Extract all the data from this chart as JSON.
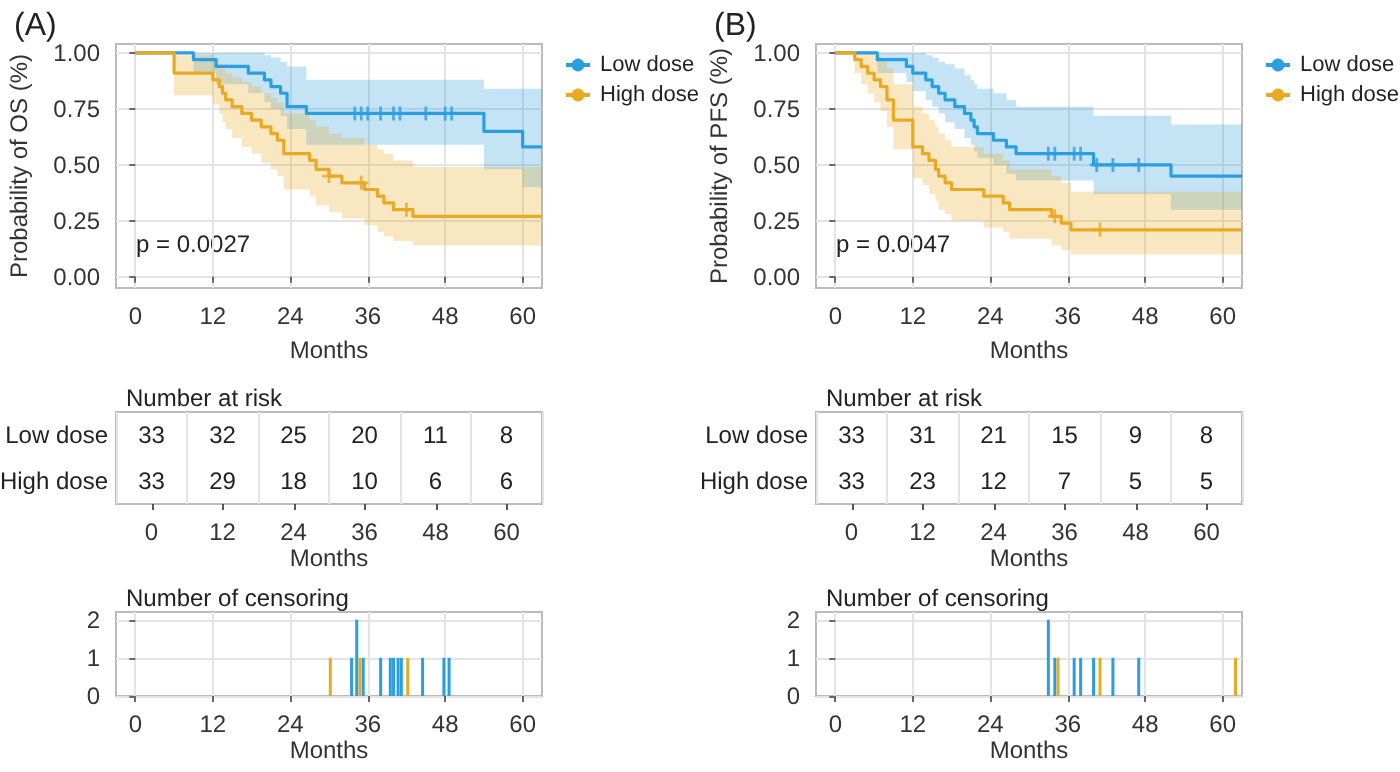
{
  "chart_data": [
    {
      "type": "step",
      "title": "(A)",
      "xlabel": "Months",
      "ylabel": "Probability of OS (%)",
      "annotations": [
        "p = 0.0027"
      ],
      "xlim": [
        -3,
        63
      ],
      "xticks": [
        0,
        12,
        24,
        36,
        48,
        60
      ],
      "ylim": [
        -0.05,
        1.04
      ],
      "yticks": [
        {
          "value": 0,
          "label": "0.00"
        },
        {
          "value": 0.25,
          "label": "0.25"
        },
        {
          "value": 0.5,
          "label": "0.50"
        },
        {
          "value": 0.75,
          "label": "0.75"
        },
        {
          "value": 1,
          "label": "1.00"
        }
      ],
      "grid": true,
      "legend": "top right",
      "line_style": "solid",
      "series": [
        {
          "name": "Low dose",
          "color": "#2a9ee0",
          "x": [
            0,
            9,
            12.5,
            17.5,
            20,
            21,
            22.5,
            23.5,
            26.5,
            54,
            60,
            63
          ],
          "values": [
            1,
            0.97,
            0.94,
            0.91,
            0.88,
            0.85,
            0.82,
            0.76,
            0.73,
            0.65,
            0.58,
            0.58
          ],
          "upper": [
            1,
            1,
            1,
            1,
            0.99,
            0.98,
            0.96,
            0.94,
            0.88,
            0.84,
            0.84,
            0.84
          ],
          "lower": [
            1,
            0.91,
            0.86,
            0.82,
            0.78,
            0.75,
            0.72,
            0.66,
            0.59,
            0.48,
            0.4,
            0.4
          ]
        },
        {
          "name": "High dose",
          "color": "#e8a923",
          "x": [
            0,
            6,
            12,
            13,
            13.5,
            14,
            15,
            16.5,
            18,
            19.5,
            21,
            22,
            23,
            27,
            28,
            30,
            32,
            35.5,
            37.5,
            38.5,
            40,
            43,
            63
          ],
          "values": [
            1,
            0.91,
            0.88,
            0.85,
            0.82,
            0.79,
            0.76,
            0.73,
            0.7,
            0.67,
            0.64,
            0.61,
            0.55,
            0.52,
            0.48,
            0.45,
            0.42,
            0.39,
            0.36,
            0.33,
            0.3,
            0.27,
            0.27
          ],
          "upper": [
            1,
            0.99,
            0.97,
            0.95,
            0.93,
            0.91,
            0.89,
            0.87,
            0.85,
            0.82,
            0.8,
            0.78,
            0.73,
            0.7,
            0.67,
            0.64,
            0.62,
            0.59,
            0.57,
            0.55,
            0.52,
            0.49,
            0.49
          ],
          "lower": [
            1,
            0.81,
            0.77,
            0.73,
            0.69,
            0.66,
            0.62,
            0.58,
            0.55,
            0.51,
            0.48,
            0.45,
            0.39,
            0.36,
            0.32,
            0.29,
            0.26,
            0.23,
            0.2,
            0.18,
            0.16,
            0.14,
            0.14
          ]
        },
        {
          "type": "scatter",
          "marker": "cross",
          "color": "#2a9ee0",
          "x": [
            34,
            35,
            36,
            38,
            40,
            41,
            45,
            48,
            49
          ],
          "values": [
            0.73,
            0.73,
            0.73,
            0.73,
            0.73,
            0.73,
            0.73,
            0.73,
            0.73
          ]
        },
        {
          "type": "scatter",
          "marker": "cross",
          "color": "#e8a923",
          "x": [
            30,
            35,
            42
          ],
          "values": [
            0.45,
            0.42,
            0.3
          ]
        }
      ]
    },
    {
      "type": "heatmap",
      "title": "Number at risk",
      "xlabel": "Months",
      "categories": [
        "0",
        "12",
        "24",
        "36",
        "48",
        "60"
      ],
      "y_categories": [
        "Low dose",
        "High dose"
      ],
      "cells": [
        [
          33,
          32,
          25,
          20,
          11,
          8
        ],
        [
          33,
          29,
          18,
          10,
          6,
          6
        ]
      ],
      "data_labels": true,
      "grid": true
    },
    {
      "type": "bar",
      "title": "Number of censoring",
      "xlabel": "Months",
      "xlim": [
        -3,
        63
      ],
      "xticks": [
        0,
        12,
        24,
        36,
        48,
        60
      ],
      "ylim": [
        0,
        2.2
      ],
      "yticks": [
        0,
        1,
        2
      ],
      "grid": true,
      "series": [
        {
          "color": "#2a9ee0",
          "x": [
            33.5,
            34.3,
            35.3,
            38,
            39.5,
            40,
            40.7,
            41.2,
            44.5,
            47.8,
            48.6
          ],
          "values": [
            1,
            2,
            1,
            1,
            1,
            1,
            1,
            1,
            1,
            1,
            1
          ]
        },
        {
          "color": "#e8a923",
          "x": [
            30.2,
            34.8,
            42.2
          ],
          "values": [
            1,
            1,
            1
          ]
        }
      ]
    },
    {
      "type": "step",
      "title": "(B)",
      "xlabel": "Months",
      "ylabel": "Probability of PFS (%)",
      "annotations": [
        "p = 0.0047"
      ],
      "xlim": [
        -3,
        63
      ],
      "xticks": [
        0,
        12,
        24,
        36,
        48,
        60
      ],
      "ylim": [
        -0.05,
        1.04
      ],
      "yticks": [
        {
          "value": 0,
          "label": "0.00"
        },
        {
          "value": 0.25,
          "label": "0.25"
        },
        {
          "value": 0.5,
          "label": "0.50"
        },
        {
          "value": 0.75,
          "label": "0.75"
        },
        {
          "value": 1,
          "label": "1.00"
        }
      ],
      "grid": true,
      "legend": "top right",
      "line_style": "solid",
      "series": [
        {
          "name": "Low dose",
          "color": "#2a9ee0",
          "x": [
            0,
            6.5,
            11,
            12,
            14,
            15,
            16,
            17,
            18.5,
            20,
            21,
            21.5,
            22,
            24.5,
            26.5,
            28,
            40,
            52,
            63
          ],
          "values": [
            1,
            0.97,
            0.94,
            0.91,
            0.88,
            0.85,
            0.82,
            0.79,
            0.76,
            0.73,
            0.7,
            0.67,
            0.64,
            0.61,
            0.58,
            0.55,
            0.5,
            0.45,
            0.45
          ],
          "upper": [
            1,
            1,
            1,
            1,
            0.99,
            0.98,
            0.96,
            0.95,
            0.93,
            0.9,
            0.88,
            0.86,
            0.84,
            0.82,
            0.79,
            0.76,
            0.72,
            0.68,
            0.68
          ],
          "lower": [
            1,
            0.91,
            0.87,
            0.83,
            0.79,
            0.76,
            0.73,
            0.69,
            0.66,
            0.62,
            0.59,
            0.56,
            0.53,
            0.5,
            0.46,
            0.43,
            0.37,
            0.3,
            0.3
          ]
        },
        {
          "name": "High dose",
          "color": "#e8a923",
          "x": [
            0,
            3,
            4,
            5,
            6,
            7,
            8,
            9,
            12,
            13.5,
            14.5,
            15.5,
            16,
            17,
            18,
            23,
            26,
            27,
            33.5,
            35,
            36.5,
            63
          ],
          "values": [
            1,
            0.97,
            0.94,
            0.91,
            0.88,
            0.85,
            0.79,
            0.7,
            0.58,
            0.55,
            0.52,
            0.48,
            0.45,
            0.42,
            0.39,
            0.36,
            0.33,
            0.3,
            0.27,
            0.24,
            0.21,
            0.21
          ],
          "upper": [
            1,
            1,
            1,
            1,
            0.99,
            0.97,
            0.93,
            0.86,
            0.76,
            0.73,
            0.7,
            0.67,
            0.64,
            0.61,
            0.58,
            0.55,
            0.52,
            0.48,
            0.45,
            0.42,
            0.38,
            0.38
          ],
          "lower": [
            1,
            0.91,
            0.86,
            0.82,
            0.78,
            0.74,
            0.67,
            0.57,
            0.44,
            0.41,
            0.37,
            0.34,
            0.3,
            0.28,
            0.25,
            0.22,
            0.2,
            0.17,
            0.14,
            0.12,
            0.1,
            0.1
          ]
        },
        {
          "type": "scatter",
          "marker": "cross",
          "color": "#2a9ee0",
          "x": [
            33,
            34,
            37,
            38,
            40.5,
            43,
            47
          ],
          "values": [
            0.55,
            0.55,
            0.55,
            0.55,
            0.5,
            0.5,
            0.5
          ]
        },
        {
          "type": "scatter",
          "marker": "cross",
          "color": "#e8a923",
          "x": [
            34,
            41
          ],
          "values": [
            0.27,
            0.21
          ]
        }
      ]
    },
    {
      "type": "heatmap",
      "title": "Number at risk",
      "xlabel": "Months",
      "categories": [
        "0",
        "12",
        "24",
        "36",
        "48",
        "60"
      ],
      "y_categories": [
        "Low dose",
        "High dose"
      ],
      "cells": [
        [
          33,
          31,
          21,
          15,
          9,
          8
        ],
        [
          33,
          23,
          12,
          7,
          5,
          5
        ]
      ],
      "data_labels": true,
      "grid": true
    },
    {
      "type": "bar",
      "title": "Number of censoring",
      "xlabel": "Months",
      "xlim": [
        -3,
        63
      ],
      "xticks": [
        0,
        12,
        24,
        36,
        48,
        60
      ],
      "ylim": [
        0,
        2.2
      ],
      "yticks": [
        0,
        1,
        2
      ],
      "grid": true,
      "series": [
        {
          "color": "#2a9ee0",
          "x": [
            33,
            34,
            37,
            38,
            40,
            43,
            47
          ],
          "values": [
            2,
            1,
            1,
            1,
            1,
            1,
            1
          ]
        },
        {
          "color": "#e8a923",
          "x": [
            34.5,
            41,
            62
          ],
          "values": [
            1,
            1,
            1
          ]
        }
      ]
    }
  ]
}
